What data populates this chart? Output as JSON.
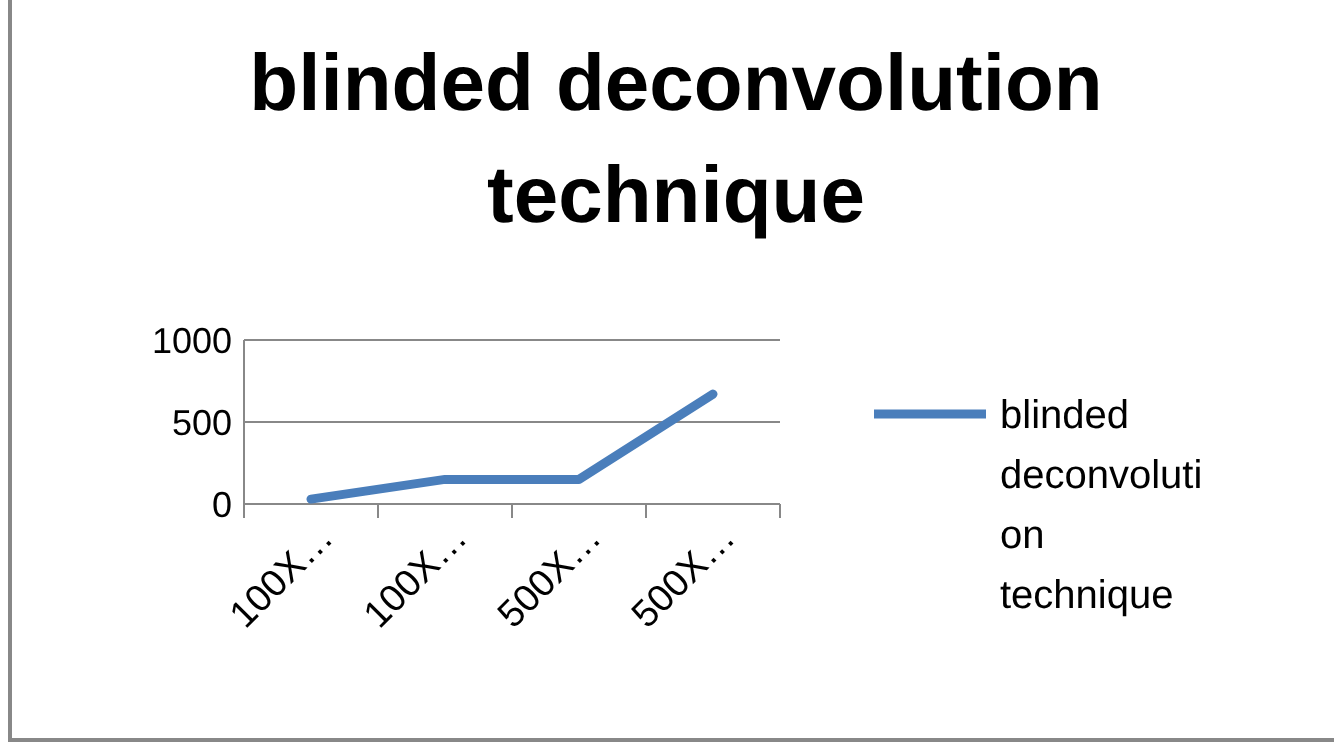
{
  "chart_data": {
    "type": "line",
    "title": "blinded deconvolution technique",
    "categories": [
      "100X…",
      "100X…",
      "500X…",
      "500X…"
    ],
    "series": [
      {
        "name": "blinded deconvolution technique",
        "color": "#4a7ebb",
        "values": [
          30,
          150,
          150,
          670
        ]
      }
    ],
    "ylim": [
      0,
      1000
    ],
    "yticks": [
      0,
      500,
      1000
    ],
    "grid": "y",
    "legend": "right",
    "marker": "none",
    "line_style": "solid"
  }
}
